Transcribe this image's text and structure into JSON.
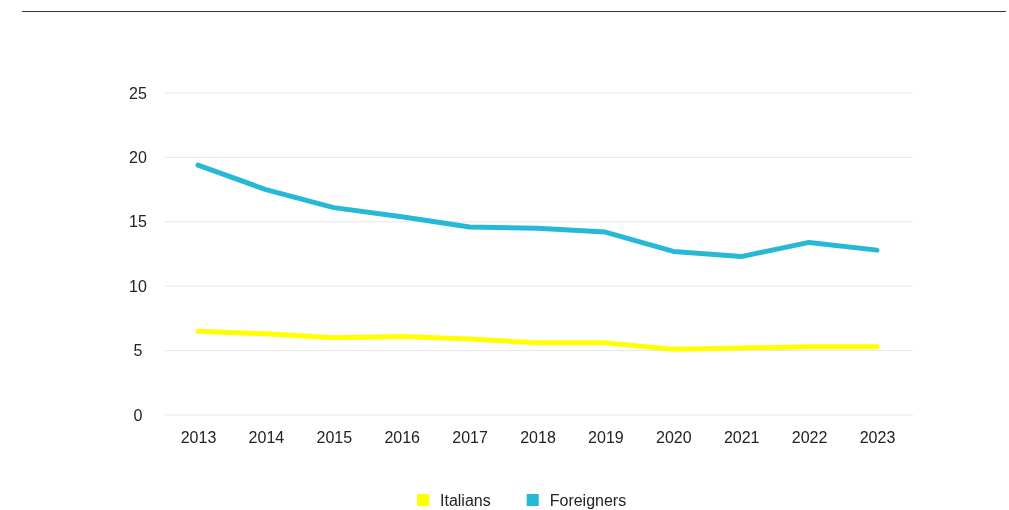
{
  "chart_data": {
    "type": "line",
    "categories": [
      "2013",
      "2014",
      "2015",
      "2016",
      "2017",
      "2018",
      "2019",
      "2020",
      "2021",
      "2022",
      "2023"
    ],
    "series": [
      {
        "name": "Italians",
        "color": "#ffff00",
        "values": [
          6.5,
          6.3,
          6.0,
          6.1,
          5.9,
          5.6,
          5.6,
          5.1,
          5.2,
          5.3,
          5.3
        ]
      },
      {
        "name": "Foreigners",
        "color": "#26b8d4",
        "values": [
          19.4,
          17.5,
          16.1,
          15.4,
          14.6,
          14.5,
          14.2,
          12.7,
          12.3,
          13.4,
          12.8
        ]
      }
    ],
    "ylim": [
      0,
      25
    ],
    "yticks": [
      0,
      5,
      10,
      15,
      20,
      25
    ],
    "grid": "y",
    "legend": "bottom",
    "marker": "none",
    "line_style": "solid"
  }
}
